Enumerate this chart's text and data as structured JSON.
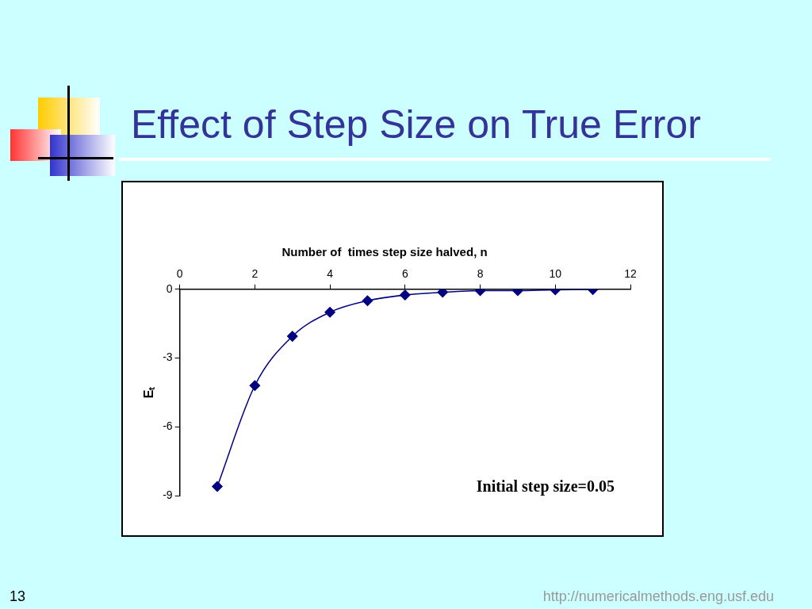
{
  "chart_data": {
    "type": "line",
    "title": "Effect of Step Size on True Error",
    "xlabel": "Number of  times step size halved, n",
    "ylabel": "Eₜ",
    "x": [
      1,
      2,
      3,
      4,
      5,
      6,
      7,
      8,
      9,
      10,
      11
    ],
    "series": [
      {
        "color": "#000080",
        "values": [
          -8.6,
          -4.2,
          -2.05,
          -1.0,
          -0.5,
          -0.25,
          -0.13,
          -0.06,
          -0.06,
          -0.02,
          -0.01
        ]
      }
    ],
    "xlim": [
      0,
      12
    ],
    "xticks": [
      0,
      2,
      4,
      6,
      8,
      10,
      12
    ],
    "ylim": [
      -9,
      0
    ],
    "yticks": [
      -9,
      -6,
      -3,
      0
    ],
    "grid": false,
    "legend": false,
    "marker": "diamond",
    "line_style": "solid",
    "annotations": [
      "Initial step size=0.05",
      "13",
      "http://numericalmethods.eng.usf.edu"
    ]
  }
}
